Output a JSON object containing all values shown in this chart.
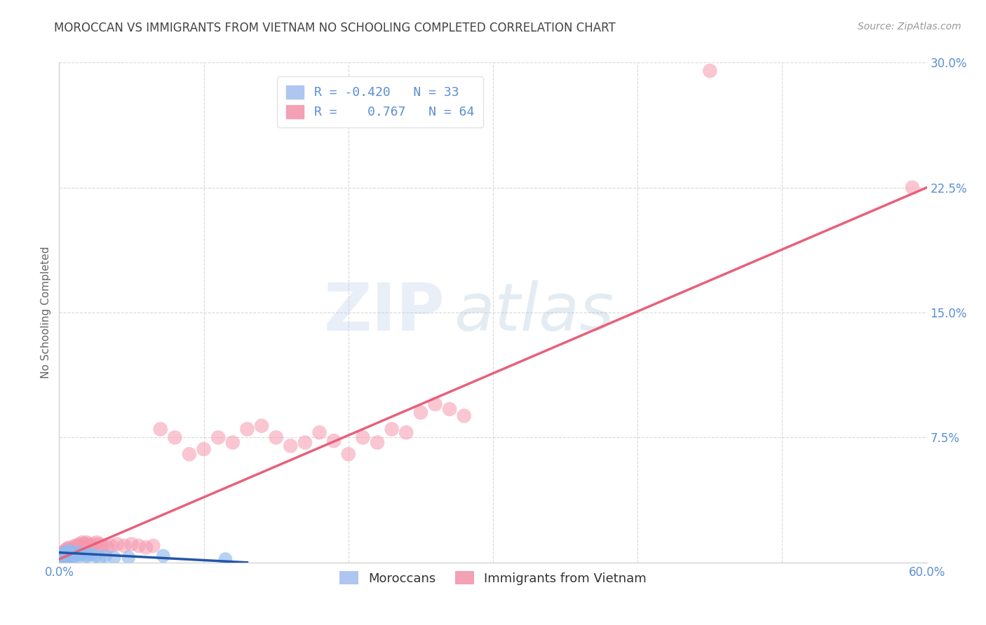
{
  "title": "MOROCCAN VS IMMIGRANTS FROM VIETNAM NO SCHOOLING COMPLETED CORRELATION CHART",
  "source": "Source: ZipAtlas.com",
  "ylabel": "No Schooling Completed",
  "xlim": [
    0.0,
    0.6
  ],
  "ylim": [
    0.0,
    0.3
  ],
  "xticks": [
    0.0,
    0.1,
    0.2,
    0.3,
    0.4,
    0.5,
    0.6
  ],
  "yticks": [
    0.0,
    0.075,
    0.15,
    0.225,
    0.3
  ],
  "xtick_labels": [
    "0.0%",
    "",
    "",
    "",
    "",
    "",
    "60.0%"
  ],
  "ytick_labels": [
    "",
    "7.5%",
    "15.0%",
    "22.5%",
    "30.0%"
  ],
  "moroccan_R": -0.42,
  "vietnam_R": 0.767,
  "moroccan_color": "#91bbee",
  "vietnam_color": "#f598ae",
  "moroccan_line_color": "#2255aa",
  "vietnam_line_color": "#e8607a",
  "background_color": "#ffffff",
  "grid_color": "#d0d0d0",
  "title_color": "#444444",
  "axis_label_color": "#5b8fd4",
  "watermark_zip": "ZIP",
  "watermark_atlas": "atlas",
  "legend_r1": "R = -0.420",
  "legend_n1": "N = 33",
  "legend_r2": "R =  0.767",
  "legend_n2": "N = 64",
  "moroccan_x": [
    0.001,
    0.002,
    0.002,
    0.003,
    0.003,
    0.004,
    0.004,
    0.005,
    0.005,
    0.006,
    0.006,
    0.007,
    0.007,
    0.008,
    0.008,
    0.009,
    0.009,
    0.01,
    0.011,
    0.012,
    0.013,
    0.014,
    0.015,
    0.018,
    0.02,
    0.022,
    0.025,
    0.028,
    0.032,
    0.038,
    0.048,
    0.072,
    0.115
  ],
  "moroccan_y": [
    0.003,
    0.004,
    0.002,
    0.005,
    0.003,
    0.006,
    0.002,
    0.005,
    0.003,
    0.006,
    0.004,
    0.007,
    0.003,
    0.005,
    0.004,
    0.006,
    0.003,
    0.005,
    0.004,
    0.005,
    0.006,
    0.004,
    0.005,
    0.004,
    0.004,
    0.005,
    0.004,
    0.003,
    0.004,
    0.003,
    0.003,
    0.004,
    0.002
  ],
  "vietnam_x": [
    0.001,
    0.002,
    0.002,
    0.003,
    0.003,
    0.004,
    0.004,
    0.005,
    0.005,
    0.006,
    0.006,
    0.007,
    0.007,
    0.008,
    0.009,
    0.01,
    0.01,
    0.011,
    0.012,
    0.013,
    0.014,
    0.015,
    0.016,
    0.017,
    0.018,
    0.019,
    0.02,
    0.022,
    0.024,
    0.026,
    0.028,
    0.03,
    0.033,
    0.036,
    0.04,
    0.045,
    0.05,
    0.055,
    0.06,
    0.065,
    0.07,
    0.08,
    0.09,
    0.1,
    0.11,
    0.12,
    0.13,
    0.14,
    0.15,
    0.16,
    0.17,
    0.18,
    0.19,
    0.2,
    0.21,
    0.22,
    0.23,
    0.24,
    0.25,
    0.26,
    0.27,
    0.28,
    0.45,
    0.59
  ],
  "vietnam_y": [
    0.003,
    0.005,
    0.004,
    0.006,
    0.004,
    0.007,
    0.005,
    0.008,
    0.006,
    0.008,
    0.005,
    0.009,
    0.007,
    0.008,
    0.007,
    0.009,
    0.008,
    0.01,
    0.009,
    0.01,
    0.011,
    0.01,
    0.012,
    0.011,
    0.01,
    0.012,
    0.011,
    0.01,
    0.011,
    0.012,
    0.011,
    0.01,
    0.009,
    0.01,
    0.011,
    0.01,
    0.011,
    0.01,
    0.009,
    0.01,
    0.08,
    0.075,
    0.065,
    0.068,
    0.075,
    0.072,
    0.08,
    0.082,
    0.075,
    0.07,
    0.072,
    0.078,
    0.073,
    0.065,
    0.075,
    0.072,
    0.08,
    0.078,
    0.09,
    0.095,
    0.092,
    0.088,
    0.295,
    0.225
  ],
  "vietnam_line_x": [
    0.0,
    0.6
  ],
  "vietnam_line_y": [
    0.002,
    0.225
  ],
  "moroccan_line_x": [
    0.0,
    0.13
  ],
  "moroccan_line_y": [
    0.006,
    0.0
  ]
}
